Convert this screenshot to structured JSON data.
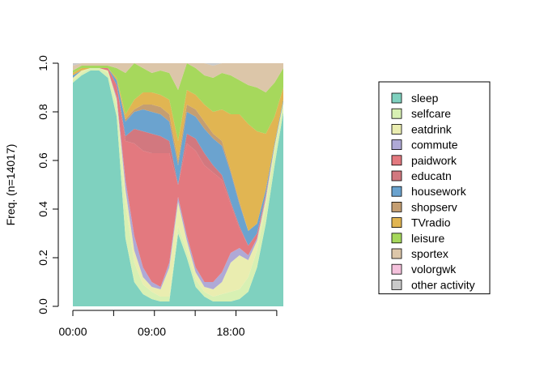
{
  "chart_data": {
    "type": "area",
    "subtype": "stacked state distribution plot",
    "ylabel": "Freq. (n=14017)",
    "xlabel": "",
    "ylim": [
      0,
      1
    ],
    "y_ticks": [
      "0.0",
      "0.2",
      "0.4",
      "0.6",
      "0.8",
      "1.0"
    ],
    "x_ticks": [
      "00:00",
      "09:00",
      "18:00"
    ],
    "x_hours": [
      0,
      1,
      2,
      3,
      4,
      5,
      6,
      7,
      8,
      9,
      10,
      11,
      12,
      13,
      14,
      15,
      16,
      17,
      18,
      19,
      20,
      21,
      22,
      23,
      24
    ],
    "legend_position": "right",
    "series": [
      {
        "name": "sleep",
        "color": "#7FD1BF",
        "values": [
          0.92,
          0.95,
          0.97,
          0.97,
          0.94,
          0.78,
          0.28,
          0.1,
          0.05,
          0.03,
          0.02,
          0.02,
          0.3,
          0.2,
          0.08,
          0.04,
          0.02,
          0.02,
          0.02,
          0.03,
          0.06,
          0.16,
          0.34,
          0.58,
          0.8
        ]
      },
      {
        "name": "selfcare",
        "color": "#D8F0B3",
        "values": [
          0.01,
          0.01,
          0.01,
          0.01,
          0.02,
          0.05,
          0.14,
          0.08,
          0.04,
          0.03,
          0.02,
          0.02,
          0.03,
          0.03,
          0.03,
          0.02,
          0.02,
          0.03,
          0.04,
          0.04,
          0.06,
          0.07,
          0.07,
          0.06,
          0.03
        ]
      },
      {
        "name": "eatdrink",
        "color": "#EAEDB0",
        "values": [
          0.01,
          0.01,
          0.0,
          0.0,
          0.01,
          0.02,
          0.06,
          0.05,
          0.03,
          0.02,
          0.03,
          0.12,
          0.1,
          0.04,
          0.03,
          0.02,
          0.03,
          0.05,
          0.12,
          0.14,
          0.07,
          0.04,
          0.03,
          0.02,
          0.01
        ]
      },
      {
        "name": "commute",
        "color": "#AFA9D6",
        "values": [
          0.0,
          0.0,
          0.0,
          0.0,
          0.0,
          0.01,
          0.04,
          0.06,
          0.04,
          0.02,
          0.01,
          0.02,
          0.02,
          0.02,
          0.02,
          0.02,
          0.03,
          0.04,
          0.04,
          0.03,
          0.02,
          0.01,
          0.01,
          0.0,
          0.0
        ]
      },
      {
        "name": "paidwork",
        "color": "#E3797F",
        "values": [
          0.0,
          0.0,
          0.0,
          0.0,
          0.01,
          0.05,
          0.16,
          0.38,
          0.48,
          0.53,
          0.55,
          0.45,
          0.05,
          0.38,
          0.48,
          0.48,
          0.45,
          0.38,
          0.2,
          0.08,
          0.04,
          0.02,
          0.01,
          0.0,
          0.0
        ]
      },
      {
        "name": "educatn",
        "color": "#D2787F",
        "values": [
          0.0,
          0.0,
          0.0,
          0.0,
          0.0,
          0.0,
          0.02,
          0.06,
          0.08,
          0.08,
          0.07,
          0.05,
          0.0,
          0.04,
          0.05,
          0.05,
          0.03,
          0.02,
          0.01,
          0.01,
          0.0,
          0.0,
          0.0,
          0.0,
          0.0
        ]
      },
      {
        "name": "housework",
        "color": "#6BA3CF",
        "values": [
          0.01,
          0.0,
          0.0,
          0.0,
          0.0,
          0.02,
          0.06,
          0.07,
          0.09,
          0.09,
          0.09,
          0.08,
          0.08,
          0.09,
          0.09,
          0.1,
          0.11,
          0.12,
          0.12,
          0.09,
          0.06,
          0.04,
          0.02,
          0.01,
          0.01
        ]
      },
      {
        "name": "shopserv",
        "color": "#C49E72",
        "values": [
          0.0,
          0.0,
          0.0,
          0.0,
          0.0,
          0.0,
          0.01,
          0.01,
          0.02,
          0.03,
          0.03,
          0.03,
          0.02,
          0.03,
          0.03,
          0.03,
          0.02,
          0.02,
          0.01,
          0.01,
          0.0,
          0.0,
          0.0,
          0.0,
          0.0
        ]
      },
      {
        "name": "TVradio",
        "color": "#E1B552",
        "values": [
          0.01,
          0.01,
          0.0,
          0.0,
          0.0,
          0.01,
          0.02,
          0.04,
          0.05,
          0.05,
          0.05,
          0.06,
          0.08,
          0.06,
          0.06,
          0.07,
          0.09,
          0.13,
          0.23,
          0.36,
          0.44,
          0.38,
          0.23,
          0.11,
          0.05
        ]
      },
      {
        "name": "leisure",
        "color": "#A6D85C",
        "values": [
          0.01,
          0.01,
          0.01,
          0.01,
          0.01,
          0.04,
          0.17,
          0.15,
          0.1,
          0.08,
          0.1,
          0.11,
          0.21,
          0.12,
          0.11,
          0.12,
          0.14,
          0.15,
          0.16,
          0.14,
          0.16,
          0.18,
          0.17,
          0.14,
          0.08
        ]
      },
      {
        "name": "sportex",
        "color": "#DCC6A9",
        "values": [
          0.02,
          0.01,
          0.01,
          0.01,
          0.01,
          0.02,
          0.04,
          0.1,
          0.02,
          0.04,
          0.03,
          0.06,
          0.11,
          0.06,
          0.02,
          0.05,
          0.05,
          0.04,
          0.05,
          0.07,
          0.09,
          0.1,
          0.12,
          0.08,
          0.02
        ]
      },
      {
        "name": "volorgwk",
        "color": "#F4C1DC",
        "values": [
          0.0,
          0.0,
          0.0,
          0.0,
          0.0,
          0.0,
          0.0,
          0.0,
          0.0,
          0.0,
          0.0,
          0.0,
          0.0,
          0.0,
          0.0,
          0.0,
          0.0,
          0.0,
          0.0,
          0.0,
          0.0,
          0.0,
          0.0,
          0.0,
          0.0
        ]
      },
      {
        "name": "other activity",
        "color": "#C9C9C9",
        "values": [
          0.01,
          0.0,
          0.0,
          0.0,
          0.0,
          0.0,
          0.0,
          0.0,
          0.0,
          0.0,
          0.0,
          0.0,
          0.0,
          0.0,
          0.0,
          0.0,
          0.0,
          0.0,
          0.0,
          0.0,
          0.0,
          0.0,
          0.0,
          0.0,
          0.0
        ]
      }
    ]
  }
}
